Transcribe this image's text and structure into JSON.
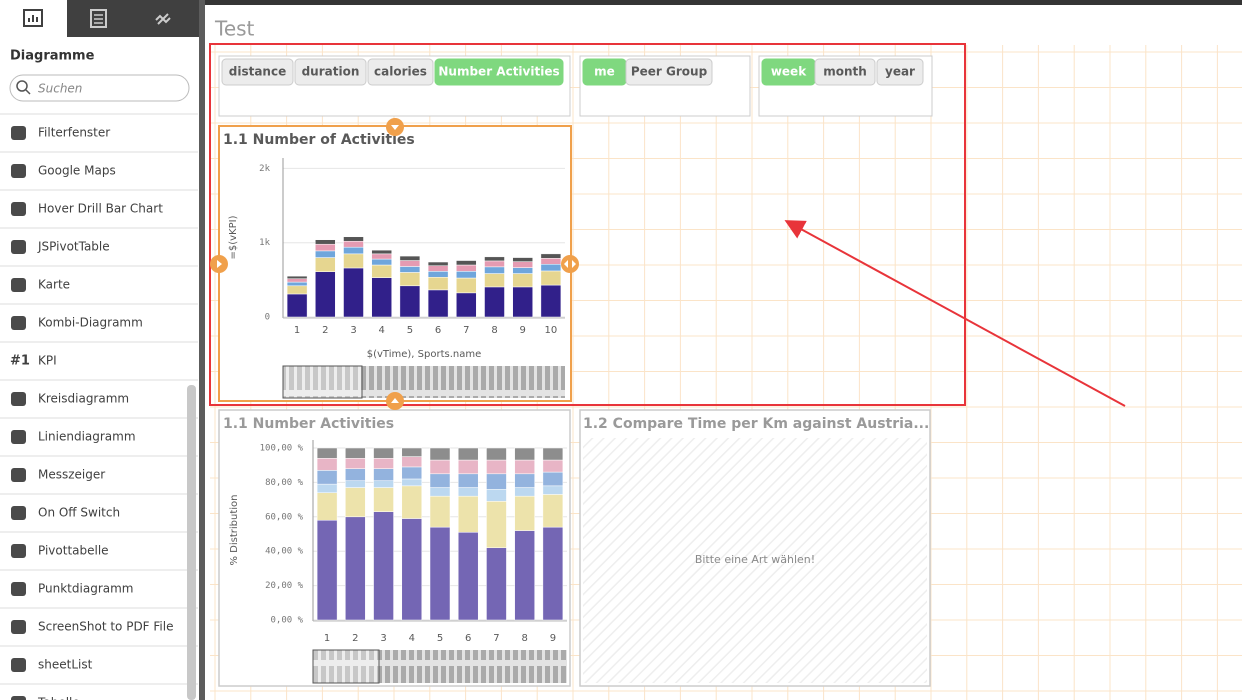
{
  "sidebar": {
    "heading": "Diagramme",
    "search_placeholder": "Suchen",
    "items": [
      {
        "label": "Filterfenster"
      },
      {
        "label": "Google Maps"
      },
      {
        "label": "Hover Drill Bar Chart"
      },
      {
        "label": "JSPivotTable"
      },
      {
        "label": "Karte"
      },
      {
        "label": "Kombi-Diagramm"
      },
      {
        "label": "KPI",
        "icon_text": "#1"
      },
      {
        "label": "Kreisdiagramm"
      },
      {
        "label": "Liniendiagramm"
      },
      {
        "label": "Messzeiger"
      },
      {
        "label": "On Off Switch"
      },
      {
        "label": "Pivottabelle"
      },
      {
        "label": "Punktdiagramm"
      },
      {
        "label": "ScreenShot to PDF File"
      },
      {
        "label": "sheetList"
      },
      {
        "label": "Tabelle"
      }
    ]
  },
  "sheet": {
    "title": "Test"
  },
  "filters": [
    {
      "buttons": [
        {
          "label": "distance",
          "selected": false
        },
        {
          "label": "duration",
          "selected": false
        },
        {
          "label": "calories",
          "selected": false
        },
        {
          "label": "Number Activities",
          "selected": true
        }
      ]
    },
    {
      "buttons": [
        {
          "label": "me",
          "selected": true
        },
        {
          "label": "Peer Group",
          "selected": false
        }
      ]
    },
    {
      "buttons": [
        {
          "label": "week",
          "selected": true
        },
        {
          "label": "month",
          "selected": false
        },
        {
          "label": "year",
          "selected": false
        }
      ]
    }
  ],
  "chart_data": [
    {
      "type": "bar",
      "stacked": true,
      "title": "1.1 Number of Activities",
      "ylabel": "=$(vKPI)",
      "xlabel": "$(vTime), Sports.name",
      "categories": [
        "1",
        "2",
        "3",
        "4",
        "5",
        "6",
        "7",
        "8",
        "9",
        "10"
      ],
      "series": [
        {
          "color": "#31208a",
          "values": [
            310,
            610,
            660,
            530,
            420,
            365,
            325,
            405,
            405,
            430
          ]
        },
        {
          "color": "#e6d690",
          "values": [
            110,
            190,
            190,
            170,
            180,
            170,
            200,
            180,
            180,
            190
          ]
        },
        {
          "color": "#6fa6dc",
          "values": [
            50,
            90,
            90,
            80,
            80,
            80,
            90,
            90,
            80,
            90
          ]
        },
        {
          "color": "#e59bb2",
          "values": [
            45,
            90,
            80,
            70,
            80,
            75,
            85,
            80,
            80,
            80
          ]
        },
        {
          "color": "#555555",
          "values": [
            35,
            60,
            60,
            50,
            60,
            50,
            60,
            55,
            55,
            60
          ]
        }
      ],
      "ylim": [
        0,
        2100
      ],
      "yticks": [
        0,
        {
          "value": 1000,
          "label": "1k"
        },
        {
          "value": 2000,
          "label": "2k"
        }
      ],
      "grid": true
    },
    {
      "type": "bar",
      "stacked": true,
      "title": "1.1 Number Activities",
      "ylabel": "% Distribution",
      "categories": [
        "1",
        "2",
        "3",
        "4",
        "5",
        "6",
        "7",
        "8",
        "9"
      ],
      "series": [
        {
          "color": "#7466b4",
          "values": [
            58,
            60,
            63,
            59,
            54,
            51,
            42,
            52,
            54
          ]
        },
        {
          "color": "#ede3ab",
          "values": [
            16,
            17,
            14,
            19,
            18,
            21,
            27,
            20,
            19
          ]
        },
        {
          "color": "#bcd8f0",
          "values": [
            5,
            4,
            4,
            4,
            5,
            5,
            7,
            5,
            5
          ]
        },
        {
          "color": "#93b3de",
          "values": [
            8,
            7,
            7,
            7,
            8,
            8,
            9,
            8,
            8
          ]
        },
        {
          "color": "#e8b5c6",
          "values": [
            7,
            6,
            6,
            6,
            8,
            8,
            8,
            8,
            7
          ]
        },
        {
          "color": "#8d8d8d",
          "values": [
            6,
            6,
            6,
            5,
            7,
            7,
            7,
            7,
            7
          ]
        }
      ],
      "ylim": [
        0,
        100
      ],
      "yticks": [
        {
          "value": 0,
          "label": "0,00 %"
        },
        {
          "value": 20,
          "label": "20,00 %"
        },
        {
          "value": 40,
          "label": "40,00 %"
        },
        {
          "value": 60,
          "label": "60,00 %"
        },
        {
          "value": 80,
          "label": "80,00 %"
        },
        {
          "value": 100,
          "label": "100,00 %"
        }
      ],
      "grid": true
    }
  ],
  "placeholder": {
    "title": "1.2 Compare Time per Km against Austria...",
    "message": "Bitte eine Art wählen!"
  }
}
